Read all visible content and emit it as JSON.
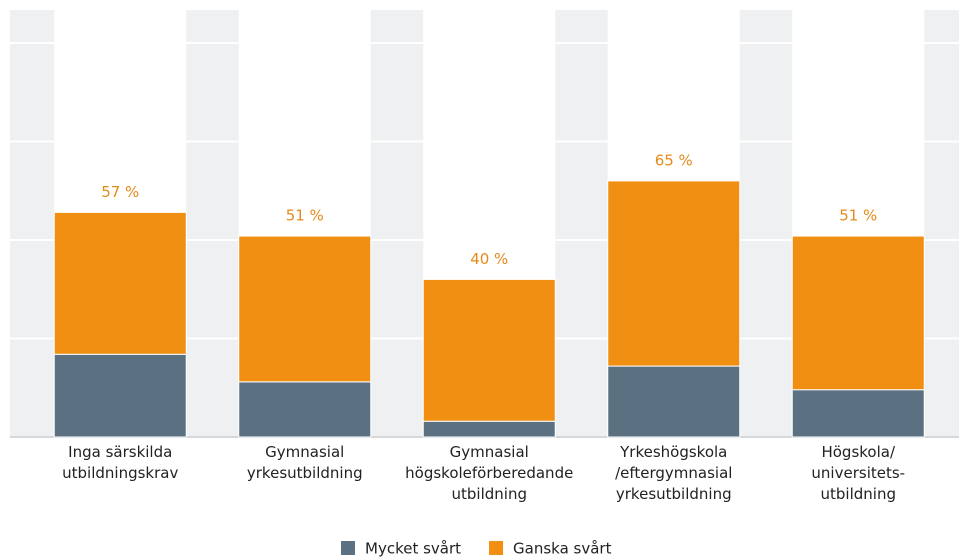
{
  "chart_data": {
    "type": "stacked_bar",
    "categories": [
      "Inga särskilda\nutbildningskrav",
      "Gymnasial\nyrkesutbildning",
      "Gymnasial\nhögskoleförberedande\nutbildning",
      "Yrkeshögskola\n/eftergymnasial\nyrkesutbildning",
      "Högskola/\nuniversitets-\nutbildning"
    ],
    "series": [
      {
        "name": "Mycket svårt",
        "color": "#5b7080",
        "values": [
          21,
          14,
          4,
          18,
          12
        ]
      },
      {
        "name": "Ganska svårt",
        "color": "#f18f13",
        "values": [
          36,
          37,
          36,
          47,
          39
        ]
      }
    ],
    "totals": [
      57,
      51,
      40,
      65,
      51
    ],
    "total_labels": [
      "57 %",
      "51 %",
      "40 %",
      "65 %",
      "51 %"
    ],
    "total_label_color": "#e48b1a",
    "ylim": [
      0,
      100
    ],
    "yticks": [
      0,
      25,
      50,
      75,
      100
    ],
    "grid": true
  }
}
